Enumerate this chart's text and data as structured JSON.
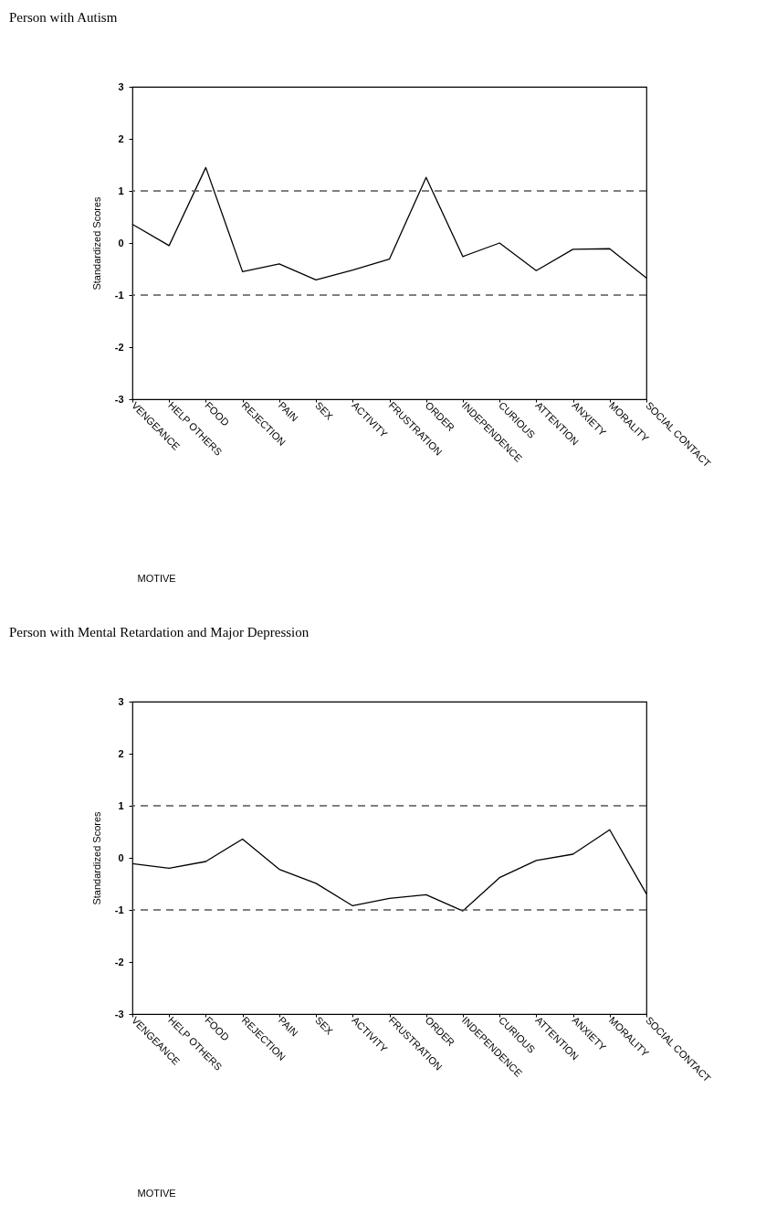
{
  "chart_data": [
    {
      "type": "line",
      "title": "Person with Autism",
      "xlabel": "MOTIVE",
      "ylabel": "Standardized Scores",
      "categories": [
        "VENGEANCE",
        "HELP OTHERS",
        "FOOD",
        "REJECTION",
        "PAIN",
        "SEX",
        "ACTIVITY",
        "FRUSTRATION",
        "ORDER",
        "INDEPENDENCE",
        "CURIOUS",
        "ATTENTION",
        "ANXIETY",
        "MORALITY",
        "SOCIAL CONTACT"
      ],
      "series": [
        {
          "color": "#000000",
          "values": [
            0.36,
            -0.05,
            1.45,
            -0.55,
            -0.4,
            -0.71,
            -0.52,
            -0.31,
            1.26,
            -0.26,
            0.0,
            -0.53,
            -0.12,
            -0.11,
            -0.67
          ]
        }
      ],
      "ylim": [
        -3,
        3
      ],
      "yticks": [
        -3,
        -2,
        -1,
        0,
        1,
        2,
        3
      ],
      "grid": false,
      "ref_lines": [
        {
          "axis": "y",
          "value": 1,
          "color": "#555555",
          "line_style": "dashed"
        },
        {
          "axis": "y",
          "value": -1,
          "color": "#555555",
          "line_style": "dashed"
        }
      ]
    },
    {
      "type": "line",
      "title": "Person with Mental Retardation and Major Depression",
      "xlabel": "MOTIVE",
      "ylabel": "Standardized Scores",
      "categories": [
        "VENGEANCE",
        "HELP OTHERS",
        "FOOD",
        "REJECTION",
        "PAIN",
        "SEX",
        "ACTIVITY",
        "FRUSTRATION",
        "ORDER",
        "INDEPENDENCE",
        "CURIOUS",
        "ATTENTION",
        "ANXIETY",
        "MORALITY",
        "SOCIAL CONTACT"
      ],
      "series": [
        {
          "color": "#000000",
          "values": [
            -0.11,
            -0.2,
            -0.07,
            0.36,
            -0.22,
            -0.49,
            -0.92,
            -0.78,
            -0.71,
            -1.02,
            -0.38,
            -0.05,
            0.07,
            0.54,
            -0.69
          ]
        }
      ],
      "ylim": [
        -3,
        3
      ],
      "yticks": [
        -3,
        -2,
        -1,
        0,
        1,
        2,
        3
      ],
      "grid": false,
      "ref_lines": [
        {
          "axis": "y",
          "value": 1,
          "color": "#555555",
          "line_style": "dashed"
        },
        {
          "axis": "y",
          "value": -1,
          "color": "#555555",
          "line_style": "dashed"
        }
      ]
    }
  ]
}
